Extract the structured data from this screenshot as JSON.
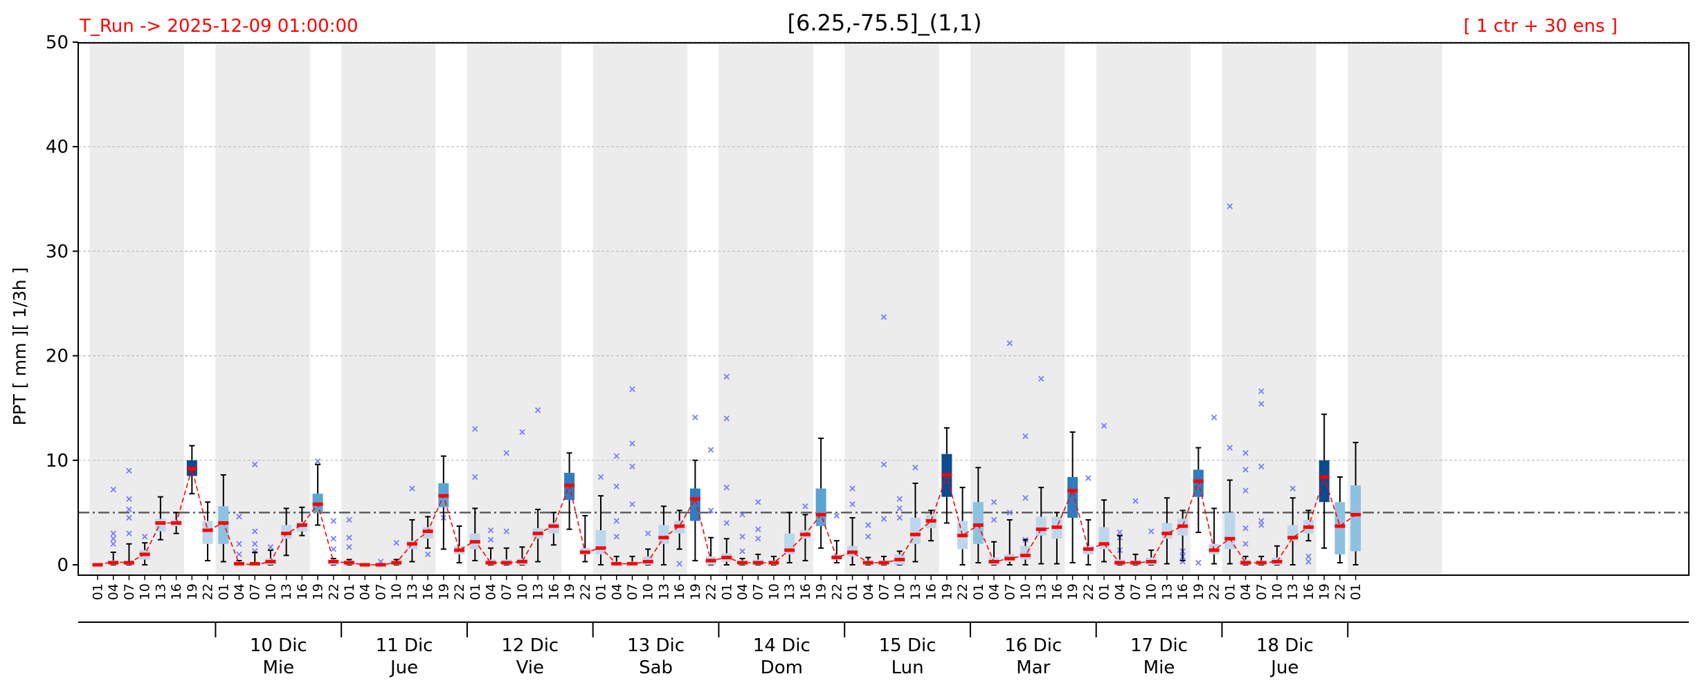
{
  "header": {
    "left": "T_Run -> 2025-12-09  01:00:00",
    "center": "[6.25,-75.5]_(1,1)",
    "right": "[ 1 ctr + 30 ens ]"
  },
  "colors": {
    "header_side": "#ff0000",
    "night_band": "#ececec",
    "grid": "#bbbbbb",
    "threshold": "#555555",
    "median": "#ff0000",
    "mean_line": "#ff0000",
    "whisker": "#000000",
    "outlier": "#7b7bff",
    "box_scale": [
      "#bcd7ec",
      "#8dc1e0",
      "#5aa3d3",
      "#2f7cc0",
      "#0d4a8f"
    ]
  },
  "chart_data": {
    "type": "box",
    "ylabel": "PPT  [ mm ][ 1/3h ]",
    "ylim": [
      0,
      50
    ],
    "yticks": [
      0,
      10,
      20,
      30,
      40,
      50
    ],
    "threshold": 5,
    "grid": true,
    "hour_labels": [
      "01",
      "04",
      "07",
      "10",
      "13",
      "16",
      "19",
      "22",
      "01",
      "04",
      "07",
      "10",
      "13",
      "16",
      "19",
      "22",
      "01",
      "04",
      "07",
      "10",
      "13",
      "16",
      "19",
      "22",
      "01",
      "04",
      "07",
      "10",
      "13",
      "16",
      "19",
      "22",
      "01",
      "04",
      "07",
      "10",
      "13",
      "16",
      "19",
      "22",
      "01",
      "04",
      "07",
      "10",
      "13",
      "16",
      "19",
      "22",
      "01",
      "04",
      "07",
      "10",
      "13",
      "16",
      "19",
      "22",
      "01",
      "04",
      "07",
      "10",
      "13",
      "16",
      "19",
      "22",
      "01",
      "04",
      "07",
      "10",
      "13",
      "16",
      "19",
      "22",
      "01",
      "04",
      "07",
      "10",
      "13",
      "16",
      "19",
      "22",
      "01"
    ],
    "days": [
      {
        "date": "10 Dic",
        "weekday": "Mie"
      },
      {
        "date": "11 Dic",
        "weekday": "Jue"
      },
      {
        "date": "12 Dic",
        "weekday": "Vie"
      },
      {
        "date": "13 Dic",
        "weekday": "Sab"
      },
      {
        "date": "14 Dic",
        "weekday": "Dom"
      },
      {
        "date": "15 Dic",
        "weekday": "Lun"
      },
      {
        "date": "16 Dic",
        "weekday": "Mar"
      },
      {
        "date": "17 Dic",
        "weekday": "Mie"
      },
      {
        "date": "18 Dic",
        "weekday": "Jue"
      }
    ],
    "median": [
      0.0,
      0.2,
      0.2,
      1.0,
      4.0,
      4.0,
      9.2,
      3.3,
      4.0,
      0.1,
      0.1,
      0.3,
      3.0,
      3.8,
      5.8,
      0.3,
      0.2,
      0.0,
      0.0,
      0.2,
      2.0,
      3.2,
      6.6,
      1.4,
      2.2,
      0.2,
      0.2,
      0.3,
      3.0,
      3.7,
      7.6,
      1.2,
      1.6,
      0.1,
      0.1,
      0.3,
      2.6,
      3.7,
      6.3,
      0.4,
      0.7,
      0.2,
      0.2,
      0.2,
      1.4,
      2.9,
      4.8,
      0.7,
      1.2,
      0.2,
      0.2,
      0.5,
      2.9,
      4.2,
      8.6,
      2.8,
      3.8,
      0.3,
      0.6,
      0.9,
      3.4,
      3.6,
      7.1,
      1.5,
      2.0,
      0.2,
      0.2,
      0.3,
      3.0,
      3.7,
      8.0,
      1.4,
      2.5,
      0.2,
      0.2,
      0.3,
      2.6,
      3.6,
      8.4,
      3.7,
      4.8
    ],
    "q1": [
      0.0,
      0.0,
      0.0,
      0.5,
      3.2,
      3.7,
      8.5,
      2.0,
      2.0,
      0.0,
      0.0,
      0.0,
      2.5,
      3.2,
      5.0,
      0.0,
      0.0,
      0.0,
      0.0,
      0.0,
      1.5,
      2.5,
      5.5,
      1.0,
      1.5,
      0.0,
      0.0,
      0.0,
      2.5,
      3.0,
      6.2,
      1.0,
      1.0,
      0.0,
      0.0,
      0.0,
      2.0,
      3.0,
      4.2,
      0.0,
      0.3,
      0.0,
      0.0,
      0.0,
      1.0,
      2.5,
      3.7,
      0.5,
      0.8,
      0.0,
      0.0,
      0.0,
      2.0,
      3.5,
      6.5,
      1.5,
      2.0,
      0.0,
      0.3,
      0.5,
      2.8,
      2.5,
      4.5,
      1.0,
      1.5,
      0.0,
      0.0,
      0.0,
      2.5,
      2.8,
      6.5,
      1.0,
      1.5,
      0.0,
      0.0,
      0.0,
      2.3,
      3.0,
      6.0,
      1.0,
      1.3
    ],
    "q3": [
      0.1,
      0.4,
      0.3,
      1.4,
      4.4,
      4.3,
      10.0,
      4.2,
      5.6,
      0.3,
      0.2,
      0.6,
      3.8,
      4.1,
      6.8,
      0.5,
      0.4,
      0.1,
      0.1,
      0.3,
      2.3,
      3.6,
      7.8,
      1.8,
      3.0,
      0.5,
      0.5,
      0.6,
      3.5,
      4.0,
      8.8,
      1.6,
      3.3,
      0.3,
      0.3,
      0.8,
      3.8,
      4.2,
      7.3,
      0.8,
      1.1,
      0.4,
      0.5,
      0.4,
      3.0,
      3.3,
      7.3,
      1.0,
      1.8,
      0.4,
      0.4,
      1.0,
      4.5,
      4.8,
      10.6,
      4.2,
      6.0,
      0.7,
      1.0,
      1.8,
      4.6,
      4.6,
      8.4,
      1.8,
      3.6,
      0.5,
      0.4,
      0.7,
      4.0,
      4.4,
      9.1,
      2.0,
      5.0,
      0.5,
      0.4,
      0.7,
      3.8,
      4.3,
      10.0,
      6.0,
      7.6
    ],
    "whisker_low": [
      0.0,
      0.0,
      0.0,
      0.0,
      2.4,
      3.0,
      6.8,
      0.4,
      0.3,
      0.0,
      0.0,
      0.0,
      0.9,
      2.8,
      3.8,
      0.0,
      0.0,
      0.0,
      0.0,
      0.0,
      0.3,
      1.6,
      1.5,
      0.2,
      0.4,
      0.0,
      0.0,
      0.0,
      0.3,
      1.9,
      3.4,
      0.3,
      0.0,
      0.0,
      0.0,
      0.0,
      0.0,
      1.5,
      0.4,
      0.0,
      0.0,
      0.0,
      0.0,
      0.0,
      0.2,
      0.4,
      1.6,
      0.2,
      0.0,
      0.0,
      0.0,
      0.0,
      0.3,
      2.3,
      4.0,
      0.0,
      0.2,
      0.0,
      0.0,
      0.0,
      0.1,
      0.1,
      0.2,
      0.0,
      0.3,
      0.0,
      0.0,
      0.0,
      0.1,
      0.4,
      3.1,
      0.1,
      0.1,
      0.0,
      0.0,
      0.0,
      0.0,
      2.3,
      1.6,
      0.2,
      0.0
    ],
    "whisker_high": [
      0.1,
      1.2,
      2.0,
      2.1,
      6.5,
      5.0,
      11.4,
      6.0,
      8.6,
      0.4,
      1.2,
      1.4,
      5.4,
      5.5,
      9.6,
      0.6,
      0.5,
      0.1,
      0.1,
      0.5,
      4.3,
      4.6,
      10.4,
      3.7,
      5.4,
      1.6,
      1.6,
      1.7,
      5.3,
      5.0,
      10.7,
      4.7,
      6.6,
      0.8,
      0.8,
      1.5,
      5.6,
      5.2,
      10.0,
      2.6,
      2.5,
      0.6,
      1.0,
      0.8,
      5.0,
      4.8,
      12.1,
      2.3,
      4.5,
      0.7,
      0.8,
      1.3,
      7.8,
      5.2,
      13.1,
      7.4,
      9.3,
      2.2,
      4.3,
      2.4,
      7.4,
      5.0,
      12.7,
      4.3,
      6.2,
      2.8,
      1.0,
      1.4,
      6.4,
      5.2,
      11.2,
      5.4,
      8.1,
      0.8,
      0.8,
      1.8,
      6.4,
      5.2,
      14.4,
      8.4,
      11.7
    ],
    "mean": [
      0.0,
      0.3,
      0.2,
      1.0,
      4.0,
      4.0,
      9.2,
      3.3,
      4.0,
      0.1,
      0.0,
      0.3,
      3.0,
      3.8,
      5.8,
      0.3,
      0.2,
      0.0,
      0.0,
      0.2,
      2.0,
      3.2,
      6.6,
      1.4,
      2.3,
      0.2,
      0.2,
      0.3,
      3.0,
      3.7,
      7.6,
      1.2,
      1.6,
      0.1,
      0.1,
      0.3,
      2.6,
      3.7,
      6.3,
      0.4,
      0.7,
      0.2,
      0.2,
      0.2,
      1.4,
      2.9,
      4.8,
      0.7,
      1.2,
      0.2,
      0.2,
      0.5,
      2.9,
      4.2,
      8.6,
      2.8,
      3.8,
      0.3,
      0.6,
      0.9,
      3.4,
      3.6,
      7.1,
      1.5,
      2.0,
      0.2,
      0.2,
      0.3,
      3.0,
      3.7,
      8.0,
      1.4,
      2.5,
      0.2,
      0.2,
      0.3,
      2.6,
      3.6,
      8.4,
      3.7,
      4.8
    ],
    "color_level": [
      1,
      1,
      1,
      1,
      1,
      1,
      5,
      1,
      2,
      1,
      1,
      1,
      1,
      1,
      3,
      1,
      1,
      1,
      1,
      1,
      1,
      1,
      3,
      1,
      1,
      1,
      1,
      1,
      1,
      1,
      4,
      1,
      1,
      1,
      1,
      1,
      1,
      1,
      4,
      1,
      1,
      1,
      1,
      1,
      1,
      1,
      3,
      1,
      1,
      1,
      1,
      1,
      1,
      1,
      5,
      1,
      2,
      1,
      1,
      1,
      1,
      1,
      4,
      1,
      1,
      1,
      1,
      1,
      1,
      1,
      4,
      1,
      1,
      1,
      1,
      1,
      1,
      1,
      5,
      2,
      2
    ],
    "outliers": [
      [
        1,
        2.0
      ],
      [
        1,
        2.5
      ],
      [
        1,
        3.0
      ],
      [
        1,
        7.2
      ],
      [
        2,
        3.0
      ],
      [
        2,
        4.5
      ],
      [
        2,
        5.3
      ],
      [
        2,
        6.3
      ],
      [
        2,
        9.0
      ],
      [
        3,
        2.7
      ],
      [
        9,
        1.0
      ],
      [
        9,
        2.0
      ],
      [
        9,
        4.6
      ],
      [
        10,
        1.3
      ],
      [
        10,
        2.0
      ],
      [
        10,
        3.2
      ],
      [
        10,
        9.6
      ],
      [
        11,
        1.7
      ],
      [
        14,
        9.9
      ],
      [
        15,
        1.5
      ],
      [
        15,
        2.5
      ],
      [
        15,
        4.2
      ],
      [
        16,
        1.7
      ],
      [
        16,
        2.6
      ],
      [
        16,
        4.3
      ],
      [
        18,
        0.3
      ],
      [
        19,
        2.1
      ],
      [
        20,
        7.3
      ],
      [
        21,
        1.0
      ],
      [
        22,
        4.5
      ],
      [
        24,
        8.4
      ],
      [
        24,
        13.0
      ],
      [
        25,
        2.4
      ],
      [
        25,
        3.3
      ],
      [
        26,
        3.2
      ],
      [
        26,
        10.7
      ],
      [
        27,
        12.7
      ],
      [
        28,
        14.8
      ],
      [
        32,
        8.4
      ],
      [
        33,
        2.7
      ],
      [
        33,
        4.2
      ],
      [
        33,
        7.5
      ],
      [
        33,
        10.4
      ],
      [
        34,
        5.8
      ],
      [
        34,
        9.4
      ],
      [
        34,
        11.6
      ],
      [
        34,
        16.8
      ],
      [
        35,
        3.0
      ],
      [
        37,
        0.1
      ],
      [
        38,
        14.1
      ],
      [
        39,
        5.2
      ],
      [
        39,
        11.0
      ],
      [
        40,
        4.0
      ],
      [
        40,
        7.4
      ],
      [
        40,
        14.0
      ],
      [
        40,
        18.0
      ],
      [
        41,
        1.3
      ],
      [
        41,
        2.7
      ],
      [
        41,
        4.8
      ],
      [
        42,
        2.5
      ],
      [
        42,
        3.4
      ],
      [
        42,
        6.0
      ],
      [
        45,
        5.6
      ],
      [
        46,
        4.7
      ],
      [
        47,
        4.7
      ],
      [
        48,
        5.8
      ],
      [
        48,
        7.3
      ],
      [
        49,
        2.7
      ],
      [
        49,
        3.8
      ],
      [
        50,
        4.4
      ],
      [
        50,
        9.6
      ],
      [
        50,
        23.7
      ],
      [
        51,
        4.5
      ],
      [
        51,
        5.4
      ],
      [
        51,
        6.3
      ],
      [
        52,
        9.3
      ],
      [
        57,
        4.3
      ],
      [
        57,
        6.0
      ],
      [
        58,
        5.0
      ],
      [
        58,
        21.2
      ],
      [
        59,
        2.4
      ],
      [
        59,
        6.4
      ],
      [
        59,
        12.3
      ],
      [
        60,
        17.8
      ],
      [
        63,
        8.3
      ],
      [
        64,
        13.3
      ],
      [
        65,
        1.4
      ],
      [
        65,
        2.6
      ],
      [
        65,
        3.1
      ],
      [
        66,
        6.1
      ],
      [
        67,
        3.2
      ],
      [
        69,
        0.3
      ],
      [
        69,
        0.8
      ],
      [
        69,
        1.3
      ],
      [
        70,
        0.2
      ],
      [
        70,
        8.3
      ],
      [
        71,
        14.1
      ],
      [
        72,
        11.2
      ],
      [
        72,
        34.3
      ],
      [
        73,
        2.0
      ],
      [
        73,
        3.5
      ],
      [
        73,
        7.1
      ],
      [
        73,
        9.1
      ],
      [
        73,
        10.7
      ],
      [
        74,
        3.8
      ],
      [
        74,
        4.2
      ],
      [
        74,
        9.4
      ],
      [
        74,
        15.4
      ],
      [
        74,
        16.6
      ],
      [
        76,
        7.3
      ],
      [
        77,
        0.3
      ],
      [
        77,
        0.8
      ]
    ]
  }
}
